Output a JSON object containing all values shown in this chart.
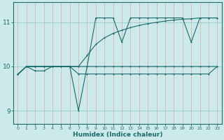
{
  "xlabel": "Humidex (Indice chaleur)",
  "xlim": [
    -0.5,
    23.5
  ],
  "ylim": [
    8.7,
    11.45
  ],
  "yticks": [
    9,
    10,
    11
  ],
  "xticks": [
    0,
    1,
    2,
    3,
    4,
    5,
    6,
    7,
    8,
    9,
    10,
    11,
    12,
    13,
    14,
    15,
    16,
    17,
    18,
    19,
    20,
    21,
    22,
    23
  ],
  "bg_color": "#cceaea",
  "grid_color_v": "#e0b0b0",
  "grid_color_h": "#99cccc",
  "line_color": "#1a6b6b",
  "line1_x": [
    0,
    1,
    2,
    3,
    4,
    5,
    6,
    7,
    8,
    9,
    10,
    11,
    12,
    13,
    14,
    15,
    16,
    17,
    18,
    19,
    20,
    21,
    22,
    23
  ],
  "line1_y": [
    9.82,
    10.0,
    10.0,
    10.0,
    10.0,
    10.0,
    10.0,
    10.0,
    10.0,
    10.0,
    10.0,
    10.0,
    10.0,
    10.0,
    10.0,
    10.0,
    10.0,
    10.0,
    10.0,
    10.0,
    10.0,
    10.0,
    10.0,
    10.0
  ],
  "line2_x": [
    0,
    1,
    2,
    3,
    4,
    5,
    6,
    7,
    8,
    9,
    10,
    11,
    12,
    13,
    14,
    15,
    16,
    17,
    18,
    19,
    20,
    21,
    22,
    23
  ],
  "line2_y": [
    9.82,
    10.0,
    9.9,
    9.9,
    10.0,
    10.0,
    10.0,
    9.83,
    9.83,
    9.83,
    9.83,
    9.83,
    9.83,
    9.83,
    9.83,
    9.83,
    9.83,
    9.83,
    9.83,
    9.83,
    9.83,
    9.83,
    9.83,
    10.0
  ],
  "line3_x": [
    0,
    1,
    2,
    3,
    4,
    5,
    6,
    7,
    8,
    9,
    10,
    11,
    12,
    13,
    14,
    15,
    16,
    17,
    18,
    19,
    20,
    21,
    22,
    23
  ],
  "line3_y": [
    9.82,
    10.0,
    10.0,
    10.0,
    10.0,
    10.0,
    10.0,
    9.0,
    10.0,
    11.1,
    11.1,
    11.1,
    10.55,
    11.1,
    11.1,
    11.1,
    11.1,
    11.1,
    11.1,
    11.1,
    10.55,
    11.1,
    11.1,
    11.1
  ],
  "line4_x": [
    0,
    1,
    2,
    3,
    4,
    5,
    6,
    7,
    8,
    9,
    10,
    11,
    12,
    13,
    14,
    15,
    16,
    17,
    18,
    19,
    20,
    21,
    22,
    23
  ],
  "line4_y": [
    9.82,
    10.0,
    10.0,
    10.0,
    10.0,
    10.0,
    10.0,
    10.0,
    10.25,
    10.5,
    10.65,
    10.75,
    10.82,
    10.88,
    10.93,
    10.97,
    11.0,
    11.03,
    11.05,
    11.07,
    11.08,
    11.1,
    11.1,
    11.1
  ]
}
